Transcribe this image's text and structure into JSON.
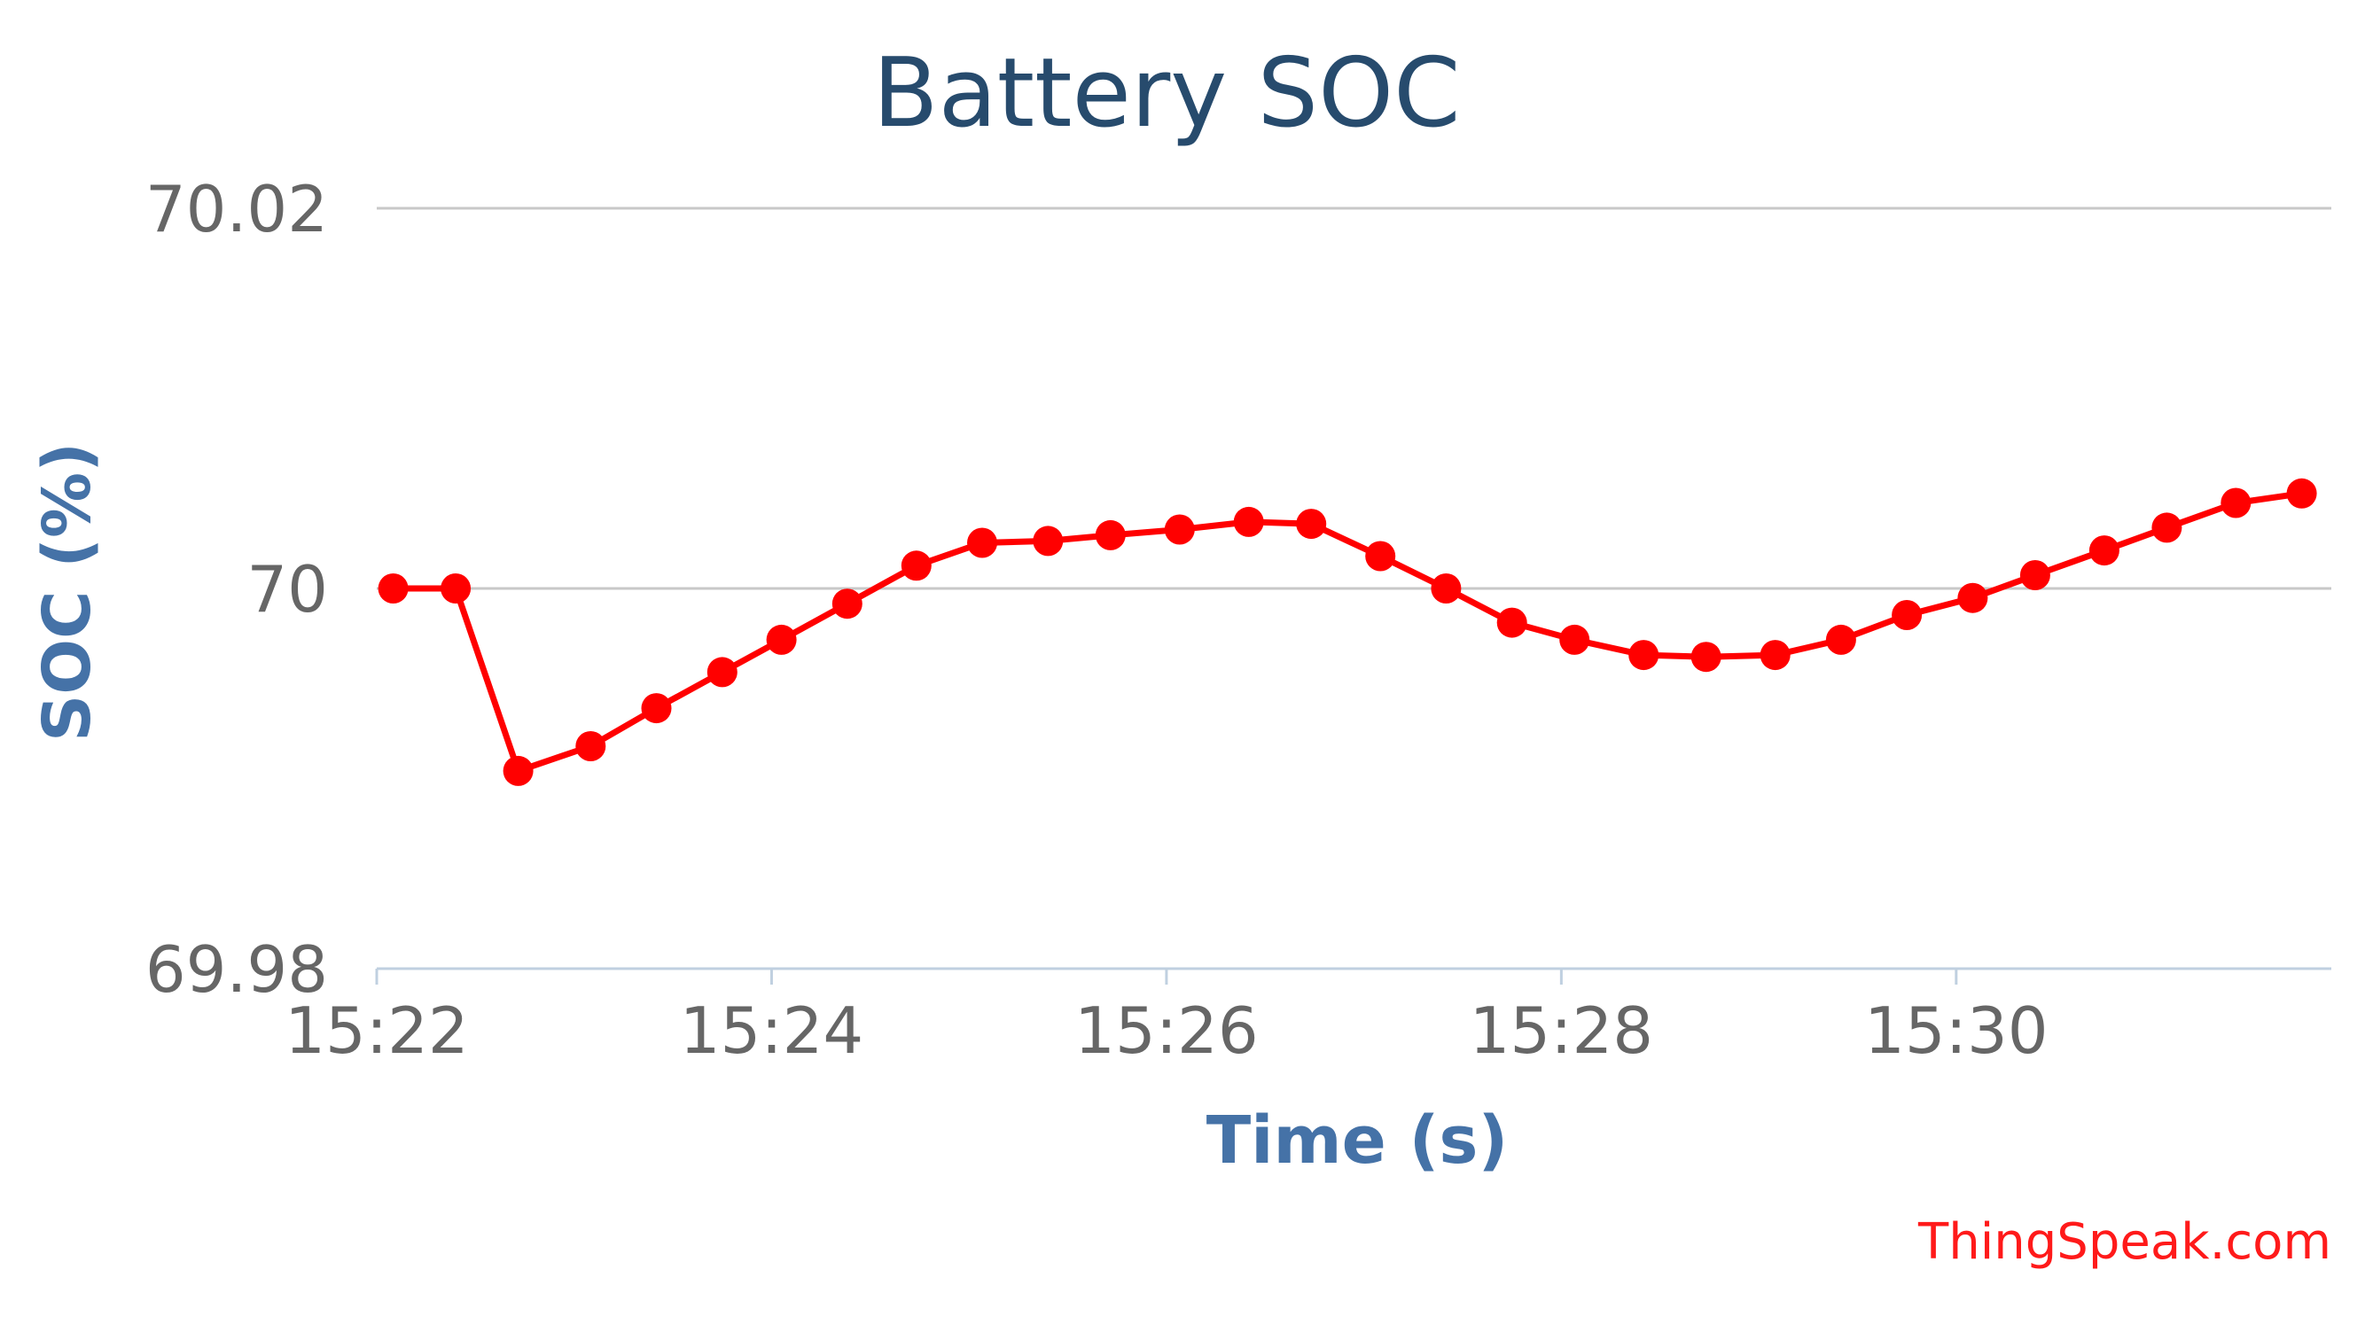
{
  "chart_data": {
    "type": "line",
    "title": "Battery SOC",
    "xlabel": "Time (s)",
    "ylabel": "SOC (%)",
    "credit": "ThingSpeak.com",
    "x_axis": {
      "min": "15:22",
      "max": "15:31:54",
      "ticks": [
        "15:22",
        "15:24",
        "15:26",
        "15:28",
        "15:30"
      ]
    },
    "y_axis": {
      "min": 69.98,
      "max": 70.02,
      "ticks": [
        69.98,
        70,
        70.02
      ],
      "tick_labels": [
        "69.98",
        "70",
        "70.02"
      ]
    },
    "grid": true,
    "legend": "none",
    "colors": {
      "series": "#ff0000",
      "title": "#274b6d",
      "axis_title": "#4572a7",
      "tick_label": "#666666",
      "credit": "#ff1a1a"
    },
    "series": [
      {
        "points": [
          {
            "x": "15:22:05",
            "y": 70.0
          },
          {
            "x": "15:22:24",
            "y": 70.0
          },
          {
            "x": "15:22:43",
            "y": 69.9904
          },
          {
            "x": "15:23:05",
            "y": 69.9917
          },
          {
            "x": "15:23:25",
            "y": 69.9937
          },
          {
            "x": "15:23:45",
            "y": 69.9956
          },
          {
            "x": "15:24:03",
            "y": 69.9973
          },
          {
            "x": "15:24:23",
            "y": 69.9992
          },
          {
            "x": "15:24:44",
            "y": 70.0012
          },
          {
            "x": "15:25:04",
            "y": 70.0024
          },
          {
            "x": "15:25:24",
            "y": 70.0025
          },
          {
            "x": "15:25:43",
            "y": 70.0028
          },
          {
            "x": "15:26:04",
            "y": 70.0031
          },
          {
            "x": "15:26:25",
            "y": 70.0035
          },
          {
            "x": "15:26:44",
            "y": 70.0034
          },
          {
            "x": "15:27:05",
            "y": 70.0017
          },
          {
            "x": "15:27:25",
            "y": 70.0
          },
          {
            "x": "15:27:45",
            "y": 69.9982
          },
          {
            "x": "15:28:04",
            "y": 69.9973
          },
          {
            "x": "15:28:25",
            "y": 69.9965
          },
          {
            "x": "15:28:44",
            "y": 69.9964
          },
          {
            "x": "15:29:05",
            "y": 69.9965
          },
          {
            "x": "15:29:25",
            "y": 69.9973
          },
          {
            "x": "15:29:45",
            "y": 69.9986
          },
          {
            "x": "15:30:05",
            "y": 69.9995
          },
          {
            "x": "15:30:24",
            "y": 70.0007
          },
          {
            "x": "15:30:45",
            "y": 70.002
          },
          {
            "x": "15:31:04",
            "y": 70.0032
          },
          {
            "x": "15:31:25",
            "y": 70.0045
          },
          {
            "x": "15:31:45",
            "y": 70.005
          }
        ]
      }
    ]
  }
}
